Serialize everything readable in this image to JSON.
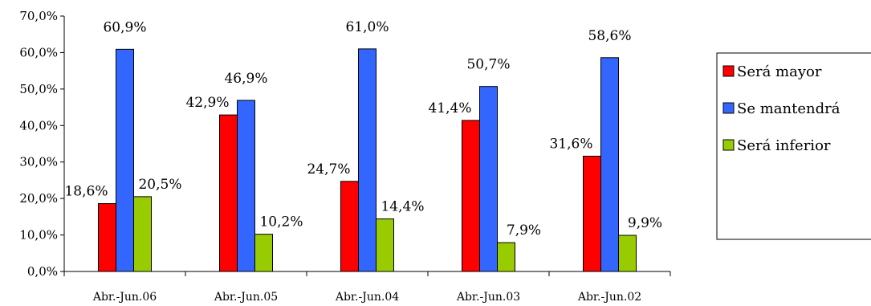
{
  "chart_data": {
    "type": "bar",
    "categories": [
      "Abr.-Jun.06",
      "Abr.-Jun.05",
      "Abr.-Jun.04",
      "Abr.-Jun.03",
      "Abr.-Jun.02"
    ],
    "series": [
      {
        "name": "Será mayor",
        "values": [
          18.6,
          42.9,
          24.7,
          41.4,
          31.6
        ],
        "labels": [
          "18,6%",
          "42,9%",
          "24,7%",
          "41,4%",
          "31,6%"
        ],
        "color": "#ff0000"
      },
      {
        "name": "Se mantendrá",
        "values": [
          60.9,
          46.9,
          61.0,
          50.7,
          58.6
        ],
        "labels": [
          "60,9%",
          "46,9%",
          "61,0%",
          "50,7%",
          "58,6%"
        ],
        "color": "#3366ff"
      },
      {
        "name": "Será inferior",
        "values": [
          20.5,
          10.2,
          14.4,
          7.9,
          9.9
        ],
        "labels": [
          "20,5%",
          "10,2%",
          "14,4%",
          "7,9%",
          "9,9%"
        ],
        "color": "#99cc00"
      }
    ],
    "ylim": [
      0,
      70
    ],
    "yticks": [
      0,
      10,
      20,
      30,
      40,
      50,
      60,
      70
    ],
    "ytick_labels": [
      "0,0%",
      "10,0%",
      "20,0%",
      "30,0%",
      "40,0%",
      "50,0%",
      "60,0%",
      "70,0%"
    ],
    "grid": false,
    "legend_position": "right"
  }
}
